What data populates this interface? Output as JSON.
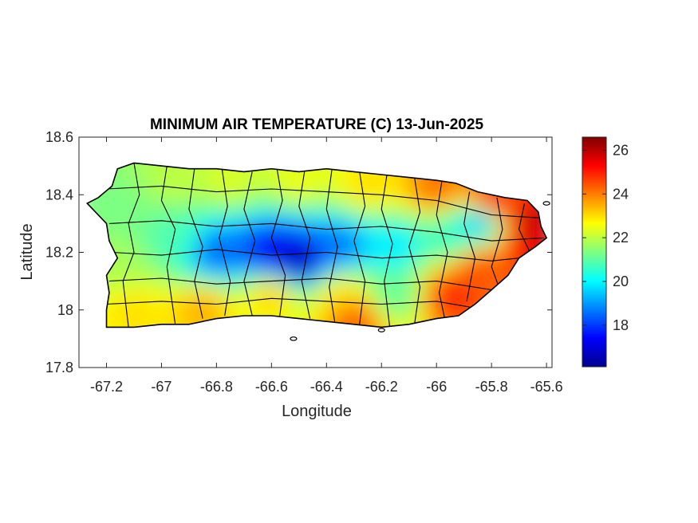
{
  "chart_data": {
    "type": "heatmap",
    "title": "MINIMUM AIR TEMPERATURE (C) 13-Jun-2025",
    "xlabel": "Longitude",
    "ylabel": "Latitude",
    "xlim": [
      -67.3,
      -65.58
    ],
    "ylim": [
      17.8,
      18.6
    ],
    "xticks": [
      -67.2,
      -67,
      -66.8,
      -66.6,
      -66.4,
      -66.2,
      -66,
      -65.8,
      -65.6
    ],
    "xtick_labels": [
      "-67.2",
      "-67",
      "-66.8",
      "-66.6",
      "-66.4",
      "-66.2",
      "-66",
      "-65.8",
      "-65.6"
    ],
    "yticks": [
      17.8,
      18,
      18.2,
      18.4,
      18.6
    ],
    "ytick_labels": [
      "17.8",
      "18",
      "18.2",
      "18.4",
      "18.6"
    ],
    "colorbar": {
      "colormap": "jet",
      "range": [
        16.1,
        26.6
      ],
      "ticks": [
        18,
        20,
        22,
        24,
        26
      ],
      "tick_labels": [
        "18",
        "20",
        "22",
        "24",
        "26"
      ]
    },
    "grid": false,
    "notes_visible": "Gridded minimum temperature field over Puerto Rico with municipality boundaries",
    "field_samples": [
      {
        "lon": -67.15,
        "lat": 18.35,
        "value": 21.3
      },
      {
        "lon": -66.95,
        "lat": 18.45,
        "value": 22.0
      },
      {
        "lon": -66.75,
        "lat": 18.45,
        "value": 22.3
      },
      {
        "lon": -66.5,
        "lat": 18.45,
        "value": 22.5
      },
      {
        "lon": -66.25,
        "lat": 18.43,
        "value": 23.0
      },
      {
        "lon": -66.0,
        "lat": 18.42,
        "value": 24.2
      },
      {
        "lon": -65.8,
        "lat": 18.38,
        "value": 24.8
      },
      {
        "lon": -65.65,
        "lat": 18.3,
        "value": 26.0
      },
      {
        "lon": -66.95,
        "lat": 18.25,
        "value": 20.8
      },
      {
        "lon": -66.8,
        "lat": 18.2,
        "value": 18.4
      },
      {
        "lon": -66.6,
        "lat": 18.2,
        "value": 17.2
      },
      {
        "lon": -66.5,
        "lat": 18.17,
        "value": 16.5
      },
      {
        "lon": -66.35,
        "lat": 18.22,
        "value": 18.6
      },
      {
        "lon": -66.15,
        "lat": 18.22,
        "value": 19.8
      },
      {
        "lon": -65.95,
        "lat": 18.25,
        "value": 20.5
      },
      {
        "lon": -65.85,
        "lat": 18.3,
        "value": 19.3
      },
      {
        "lon": -65.85,
        "lat": 18.15,
        "value": 24.5
      },
      {
        "lon": -65.95,
        "lat": 18.05,
        "value": 25.0
      },
      {
        "lon": -66.15,
        "lat": 18.05,
        "value": 21.0
      },
      {
        "lon": -66.35,
        "lat": 18.05,
        "value": 23.0
      },
      {
        "lon": -66.6,
        "lat": 18.05,
        "value": 23.2
      },
      {
        "lon": -66.85,
        "lat": 18.0,
        "value": 23.5
      },
      {
        "lon": -67.1,
        "lat": 18.0,
        "value": 23.0
      },
      {
        "lon": -67.15,
        "lat": 18.15,
        "value": 21.8
      },
      {
        "lon": -66.3,
        "lat": 17.97,
        "value": 24.5
      },
      {
        "lon": -65.65,
        "lat": 18.22,
        "value": 25.5
      }
    ]
  }
}
